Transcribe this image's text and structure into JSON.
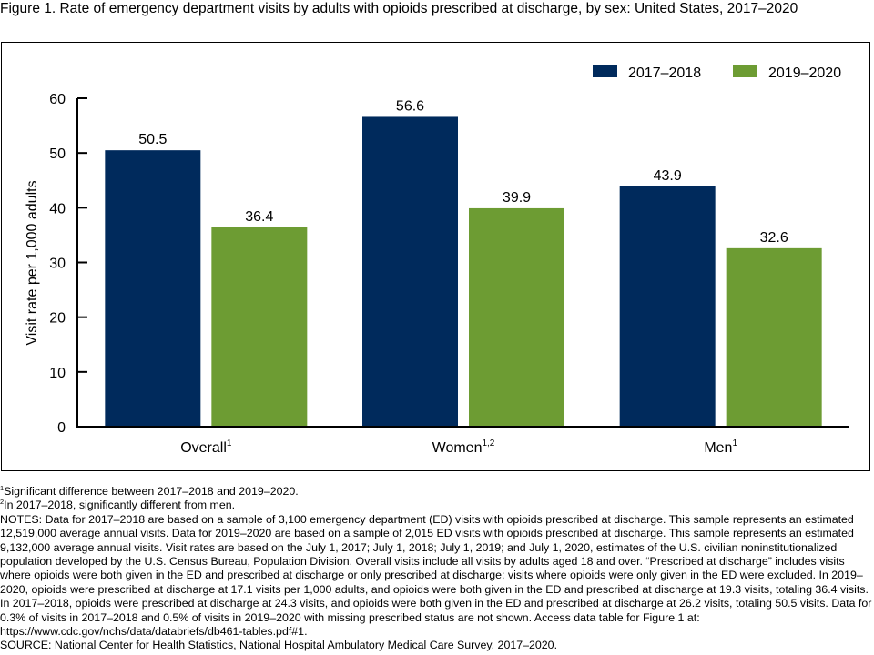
{
  "title": "Figure 1. Rate of emergency department visits by adults with opioids prescribed at discharge, by sex: United States, 2017–2020",
  "chart_data": {
    "type": "bar",
    "title": "Rate of emergency department visits by adults with opioids prescribed at discharge, by sex: United States, 2017–2020",
    "xlabel": "",
    "ylabel": "Visit rate per 1,000 adults",
    "ylim": [
      0,
      60
    ],
    "yticks": [
      0,
      10,
      20,
      30,
      40,
      50,
      60
    ],
    "grid": false,
    "legend_position": "top-right",
    "categories": [
      {
        "label": "Overall",
        "sup": "1"
      },
      {
        "label": "Women",
        "sup": "1,2"
      },
      {
        "label": "Men",
        "sup": "1"
      }
    ],
    "series": [
      {
        "name": "2017–2018",
        "color": "#002a5c",
        "values": [
          50.5,
          56.6,
          43.9
        ]
      },
      {
        "name": "2019–2020",
        "color": "#6d9c33",
        "values": [
          36.4,
          39.9,
          32.6
        ]
      }
    ]
  },
  "footnotes": [
    {
      "sup": "1",
      "text": "Significant difference between 2017–2018 and 2019–2020."
    },
    {
      "sup": "2",
      "text": "In 2017–2018, significantly different from men."
    }
  ],
  "notes": "NOTES: Data for 2017–2018 are based on a sample of 3,100 emergency department (ED) visits with opioids prescribed at discharge. This sample represents an estimated 12,519,000 average annual visits. Data for 2019–2020 are based on a sample of 2,015 ED visits with opioids prescribed at discharge. This sample represents an estimated 9,132,000 average annual visits. Visit rates are based on the July 1, 2017; July 1, 2018; July 1, 2019; and July 1, 2020, estimates of the U.S. civilian noninstitutionalized population developed by the U.S. Census Bureau, Population Division. Overall visits include all visits by adults aged 18 and over. “Prescribed at discharge” includes visits where opioids were both given in the ED and prescribed at discharge or only prescribed at discharge; visits where opioids were only given in the ED were excluded. In 2019–2020, opioids were prescribed at discharge at 17.1 visits per 1,000 adults, and opioids were both given in the ED and prescribed at discharge at 19.3 visits, totaling 36.4 visits. In 2017–2018, opioids were prescribed at discharge at 24.3 visits, and opioids were both given in the ED and prescribed at discharge at 26.2 visits, totaling 50.5 visits. Data for 0.3% of visits in 2017–2018 and 0.5% of visits in 2019–2020 with missing prescribed status are not shown. Access data table for Figure 1 at: https://www.cdc.gov/nchs/data/databriefs/db461-tables.pdf#1.",
  "source": "SOURCE: National Center for Health Statistics, National Hospital Ambulatory Medical Care Survey, 2017–2020."
}
